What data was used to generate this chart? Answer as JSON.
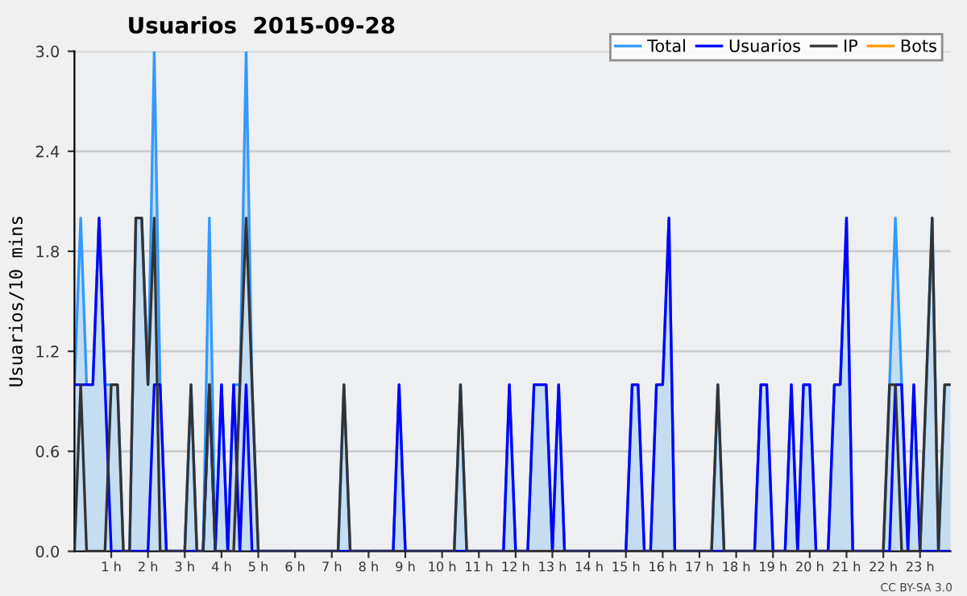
{
  "chart_data": {
    "type": "line",
    "title": "Usuarios  2015-09-28",
    "ylabel": "Usuarios/10 mins",
    "annotations": [
      "CC BY-SA 3.0"
    ],
    "x": [
      0,
      0.17,
      0.33,
      0.5,
      0.67,
      0.83,
      1,
      1.17,
      1.33,
      1.5,
      1.67,
      1.83,
      2,
      2.17,
      2.33,
      2.5,
      2.67,
      2.83,
      3,
      3.17,
      3.33,
      3.5,
      3.67,
      3.83,
      4,
      4.17,
      4.33,
      4.5,
      4.67,
      4.83,
      5,
      5.17,
      5.33,
      5.5,
      5.67,
      5.83,
      6,
      6.17,
      6.33,
      6.5,
      6.67,
      6.83,
      7,
      7.17,
      7.33,
      7.5,
      7.67,
      7.83,
      8,
      8.17,
      8.33,
      8.5,
      8.67,
      8.83,
      9,
      9.17,
      9.33,
      9.5,
      9.67,
      9.83,
      10,
      10.17,
      10.33,
      10.5,
      10.67,
      10.83,
      11,
      11.17,
      11.33,
      11.5,
      11.67,
      11.83,
      12,
      12.17,
      12.33,
      12.5,
      12.67,
      12.83,
      13,
      13.17,
      13.33,
      13.5,
      13.67,
      13.83,
      14,
      14.17,
      14.33,
      14.5,
      14.67,
      14.83,
      15,
      15.17,
      15.33,
      15.5,
      15.67,
      15.83,
      16,
      16.17,
      16.33,
      16.5,
      16.67,
      16.83,
      17,
      17.17,
      17.33,
      17.5,
      17.67,
      17.83,
      18,
      18.17,
      18.33,
      18.5,
      18.67,
      18.83,
      19,
      19.17,
      19.33,
      19.5,
      19.67,
      19.83,
      20,
      20.17,
      20.33,
      20.5,
      20.67,
      20.83,
      21,
      21.17,
      21.33,
      21.5,
      21.67,
      21.83,
      22,
      22.17,
      22.33,
      22.5,
      22.67,
      22.83,
      23,
      23.17,
      23.33,
      23.5,
      23.67,
      23.83
    ],
    "series": [
      {
        "name": "Total",
        "type": "area",
        "color": "#3399ff",
        "values": [
          1,
          2,
          1,
          1,
          2,
          1,
          1,
          1,
          0,
          0,
          2,
          2,
          1,
          3,
          1,
          0,
          0,
          0,
          0,
          1,
          0,
          0,
          2,
          0,
          1,
          0,
          1,
          1,
          3,
          1,
          0,
          0,
          0,
          0,
          0,
          0,
          0,
          0,
          0,
          0,
          0,
          0,
          0,
          0,
          1,
          0,
          0,
          0,
          0,
          0,
          0,
          0,
          0,
          1,
          0,
          0,
          0,
          0,
          0,
          0,
          0,
          0,
          0,
          1,
          0,
          0,
          0,
          0,
          0,
          0,
          0,
          1,
          0,
          0,
          0,
          1,
          1,
          1,
          0,
          1,
          0,
          0,
          0,
          0,
          0,
          0,
          0,
          0,
          0,
          0,
          0,
          1,
          1,
          0,
          0,
          1,
          1,
          2,
          0,
          0,
          0,
          0,
          0,
          0,
          0,
          1,
          0,
          0,
          0,
          0,
          0,
          0,
          1,
          1,
          0,
          0,
          0,
          1,
          0,
          1,
          1,
          0,
          0,
          0,
          1,
          1,
          2,
          0,
          0,
          0,
          0,
          0,
          0,
          1,
          2,
          1,
          0,
          1,
          0,
          1,
          2,
          0,
          1,
          1
        ]
      },
      {
        "name": "Usuarios",
        "color": "#0000ff",
        "values": [
          1,
          1,
          1,
          1,
          2,
          1,
          0,
          0,
          0,
          0,
          0,
          0,
          0,
          1,
          1,
          0,
          0,
          0,
          0,
          0,
          0,
          0,
          1,
          0,
          1,
          0,
          1,
          0,
          1,
          0,
          0,
          0,
          0,
          0,
          0,
          0,
          0,
          0,
          0,
          0,
          0,
          0,
          0,
          0,
          0,
          0,
          0,
          0,
          0,
          0,
          0,
          0,
          0,
          1,
          0,
          0,
          0,
          0,
          0,
          0,
          0,
          0,
          0,
          0,
          0,
          0,
          0,
          0,
          0,
          0,
          0,
          1,
          0,
          0,
          0,
          1,
          1,
          1,
          0,
          1,
          0,
          0,
          0,
          0,
          0,
          0,
          0,
          0,
          0,
          0,
          0,
          1,
          1,
          0,
          0,
          1,
          1,
          2,
          0,
          0,
          0,
          0,
          0,
          0,
          0,
          0,
          0,
          0,
          0,
          0,
          0,
          0,
          1,
          1,
          0,
          0,
          0,
          1,
          0,
          1,
          1,
          0,
          0,
          0,
          1,
          1,
          2,
          0,
          0,
          0,
          0,
          0,
          0,
          0,
          1,
          1,
          0,
          1,
          0,
          0,
          0,
          0,
          0,
          0
        ]
      },
      {
        "name": "IP",
        "color": "#333333",
        "values": [
          0,
          1,
          0,
          0,
          0,
          0,
          1,
          1,
          0,
          0,
          2,
          2,
          1,
          2,
          0,
          0,
          0,
          0,
          0,
          1,
          0,
          0,
          1,
          0,
          0,
          0,
          0,
          1,
          2,
          1,
          0,
          0,
          0,
          0,
          0,
          0,
          0,
          0,
          0,
          0,
          0,
          0,
          0,
          0,
          1,
          0,
          0,
          0,
          0,
          0,
          0,
          0,
          0,
          0,
          0,
          0,
          0,
          0,
          0,
          0,
          0,
          0,
          0,
          1,
          0,
          0,
          0,
          0,
          0,
          0,
          0,
          0,
          0,
          0,
          0,
          0,
          0,
          0,
          0,
          0,
          0,
          0,
          0,
          0,
          0,
          0,
          0,
          0,
          0,
          0,
          0,
          0,
          0,
          0,
          0,
          0,
          0,
          0,
          0,
          0,
          0,
          0,
          0,
          0,
          0,
          1,
          0,
          0,
          0,
          0,
          0,
          0,
          0,
          0,
          0,
          0,
          0,
          0,
          0,
          0,
          0,
          0,
          0,
          0,
          0,
          0,
          0,
          0,
          0,
          0,
          0,
          0,
          0,
          1,
          1,
          0,
          0,
          0,
          0,
          1,
          2,
          0,
          1,
          1
        ]
      },
      {
        "name": "Bots",
        "color": "#ff9900",
        "values": [
          null,
          null,
          null,
          null,
          null,
          null,
          null,
          null,
          null,
          null,
          null,
          null,
          null,
          null,
          null,
          null,
          null,
          null,
          null,
          null,
          null,
          null,
          null,
          null,
          null,
          null,
          null,
          null,
          null,
          null,
          null,
          null,
          null,
          null,
          null,
          null,
          null,
          null,
          null,
          null,
          null,
          null,
          null,
          null,
          null,
          null,
          null,
          null,
          null,
          null,
          null,
          null,
          null,
          null,
          null,
          null,
          null,
          null,
          null,
          null,
          null,
          null,
          null,
          null,
          null,
          null,
          null,
          null,
          null,
          null,
          null,
          null,
          null,
          null,
          null,
          null,
          null,
          null,
          null,
          null,
          null,
          null,
          null,
          null,
          null,
          null,
          null,
          null,
          null,
          null,
          null,
          null,
          null,
          null,
          null,
          null,
          null,
          null,
          null,
          null,
          null,
          null,
          null,
          null,
          null,
          null,
          null,
          null,
          null,
          null,
          null,
          null,
          null,
          null,
          null,
          null,
          null,
          null,
          null,
          null,
          null,
          null,
          null,
          null,
          null,
          null,
          null,
          null,
          null,
          null,
          null,
          null,
          null,
          null,
          null,
          null,
          null,
          null,
          null,
          null,
          null,
          null,
          null,
          null
        ]
      }
    ],
    "xlim": [
      0,
      23.83
    ],
    "xticks": [
      {
        "value": 1,
        "label": "1 h"
      },
      {
        "value": 2,
        "label": "2 h"
      },
      {
        "value": 3,
        "label": "3 h"
      },
      {
        "value": 4,
        "label": "4 h"
      },
      {
        "value": 5,
        "label": "5 h"
      },
      {
        "value": 6,
        "label": "6 h"
      },
      {
        "value": 7,
        "label": "7 h"
      },
      {
        "value": 8,
        "label": "8 h"
      },
      {
        "value": 9,
        "label": "9 h"
      },
      {
        "value": 10,
        "label": "10 h"
      },
      {
        "value": 11,
        "label": "11 h"
      },
      {
        "value": 12,
        "label": "12 h"
      },
      {
        "value": 13,
        "label": "13 h"
      },
      {
        "value": 14,
        "label": "14 h"
      },
      {
        "value": 15,
        "label": "15 h"
      },
      {
        "value": 16,
        "label": "16 h"
      },
      {
        "value": 17,
        "label": "17 h"
      },
      {
        "value": 18,
        "label": "18 h"
      },
      {
        "value": 19,
        "label": "19 h"
      },
      {
        "value": 20,
        "label": "20 h"
      },
      {
        "value": 21,
        "label": "21 h"
      },
      {
        "value": 22,
        "label": "22 h"
      },
      {
        "value": 23,
        "label": "23 h"
      }
    ],
    "ylim": [
      0,
      3.0
    ],
    "yticks": [
      {
        "value": 0,
        "label": "0.0"
      },
      {
        "value": 0.6,
        "label": "0.6"
      },
      {
        "value": 1.2,
        "label": "1.2"
      },
      {
        "value": 1.8,
        "label": "1.8"
      },
      {
        "value": 2.4,
        "label": "2.4"
      },
      {
        "value": 3.0,
        "label": "3.0"
      }
    ],
    "grid": "y",
    "legend": "top right"
  }
}
